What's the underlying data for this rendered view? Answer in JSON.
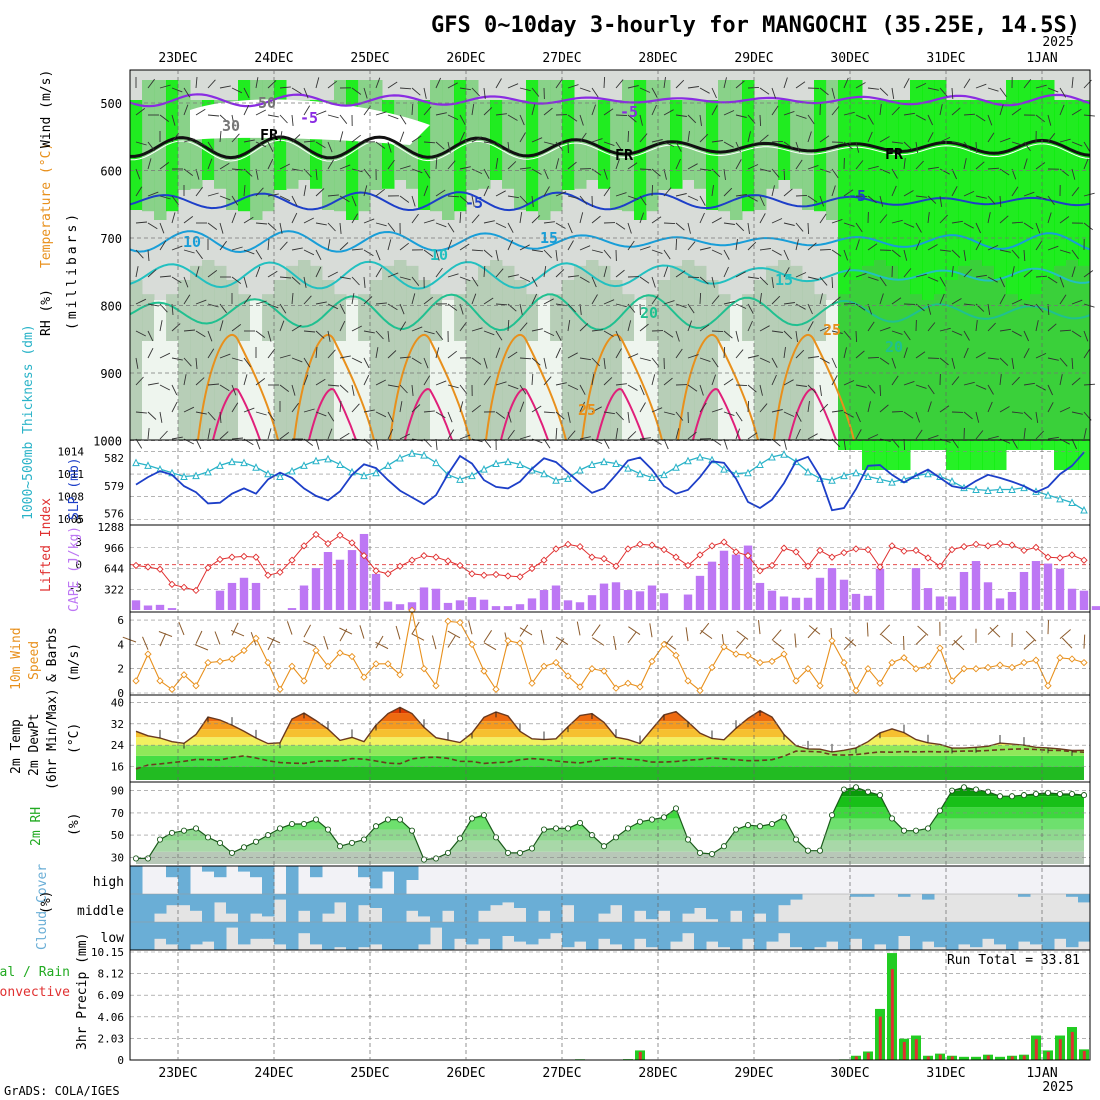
{
  "title": "GFS 0~10day 3-hourly for MANGOCHI (35.25E, 14.5S)",
  "year_top": "2025",
  "year_bottom": "2025",
  "credit": "GrADS: COLA/IGES",
  "dates": [
    "23DEC",
    "24DEC",
    "25DEC",
    "26DEC",
    "27DEC",
    "28DEC",
    "29DEC",
    "30DEC",
    "31DEC",
    "1JAN"
  ],
  "colors": {
    "rh_green": "#1fd41f",
    "rh_bright": "#00ee00",
    "purple": "#8a2be2",
    "temp_orange": "#e8901c",
    "slp_blue": "#1d3fc8",
    "thick_cyan": "#2ab3c8",
    "cape": "#bd77f4",
    "li_red": "#e03030",
    "cloud_blue": "#6aaed6",
    "precip_green": "#22cc22",
    "precip_red": "#e03030"
  },
  "panels": {
    "upper": {
      "ylabel_rh": "RH (%)",
      "ylabel_temp": "Temperature (°C)",
      "ylabel_wind": "Wind (m/s)",
      "ylabel_units": "(millibars)",
      "ticks": [
        "500",
        "600",
        "700",
        "800",
        "900",
        "1000"
      ],
      "contour_labels": [
        "-5",
        "-5",
        "FR",
        "FR",
        "FR",
        "-5",
        "-5",
        "10",
        "15",
        "10",
        "15",
        "20",
        "20",
        "25",
        "25",
        "50",
        "30"
      ]
    },
    "thickness": {
      "ylabel_left": "1000~500mb Thickness (dm)",
      "ylabel_right": "SLP (mb)",
      "left_ticks": [
        "582",
        "579",
        "576"
      ],
      "right_ticks": [
        "1014",
        "1011",
        "1008",
        "1005"
      ]
    },
    "cape": {
      "ylabel_left": "Lifted Index",
      "ylabel_right": "CAPE (J/kg)",
      "left_ticks": [
        "-3",
        "0",
        "3",
        "6"
      ],
      "right_ticks": [
        "1288",
        "966",
        "644",
        "322"
      ]
    },
    "wind10": {
      "ylabel_a": "10m Wind",
      "ylabel_b": "Speed",
      "ylabel_c": "& Barbs",
      "ylabel_units": "(m/s)",
      "ticks": [
        "6",
        "4",
        "2",
        "0"
      ]
    },
    "temp2m": {
      "ylabel_a": "2m Temp",
      "ylabel_b": "2m DewPt",
      "ylabel_c": "(6hr Min/Max)",
      "ylabel_units": "(°C)",
      "ticks": [
        "40",
        "32",
        "24",
        "16"
      ]
    },
    "rh2m": {
      "ylabel": "2m RH",
      "ylabel_units": "(%)",
      "ticks": [
        "90",
        "70",
        "50",
        "30"
      ]
    },
    "cloud": {
      "ylabel": "Cloud Cover",
      "ylabel_units": "(%)",
      "rows": [
        "high",
        "middle",
        "low"
      ]
    },
    "precip": {
      "ylabel_a": "Total / Rain",
      "ylabel_b": "Convective",
      "ylabel_c": "3hr Precip (mm)",
      "ticks": [
        "10.15",
        "8.12",
        "6.09",
        "4.06",
        "2.03",
        "0"
      ],
      "run_total": "Run Total = 33.81"
    }
  },
  "chart_data": [
    {
      "type": "line",
      "name": "1000-500mb thickness",
      "x_unit": "3-hourly steps from 22DEC12Z",
      "y_unit": "dm",
      "ylim": [
        575,
        583.5
      ],
      "values": [
        581.5,
        581.2,
        580.8,
        580.4,
        580.0,
        580.1,
        580.5,
        581.2,
        581.6,
        581.5,
        581.0,
        580.3,
        580.0,
        580.6,
        581.2,
        581.7,
        581.9,
        581.3,
        580.5,
        580.1,
        580.4,
        581.2,
        582.0,
        582.5,
        582.3,
        581.5,
        580.2,
        579.7,
        580.1,
        580.8,
        581.4,
        581.6,
        581.3,
        580.7,
        580.3,
        579.6,
        579.8,
        580.7,
        581.3,
        581.6,
        581.4,
        580.9,
        580.3,
        579.9,
        580.2,
        581.0,
        581.7,
        582.1,
        581.8,
        580.8,
        580.3,
        580.4,
        581.3,
        582.1,
        582.4,
        581.6,
        580.5,
        579.8,
        579.6,
        580.1,
        580.4,
        580.0,
        579.7,
        579.4,
        579.7,
        580.1,
        580.3,
        580.0,
        579.5,
        578.8,
        578.6,
        578.5,
        578.6,
        578.6,
        578.8,
        578.4,
        578.0,
        577.6,
        577.2,
        576.4
      ]
    },
    {
      "type": "line",
      "name": "SLP",
      "y_unit": "mb",
      "ylim": [
        1004.5,
        1015
      ],
      "values": [
        1009.6,
        1010.6,
        1011.4,
        1010.9,
        1009.4,
        1008.6,
        1007.1,
        1007.2,
        1008.4,
        1009.1,
        1008.4,
        1010.3,
        1011.2,
        1010.5,
        1009.1,
        1008.1,
        1007.5,
        1008.7,
        1010.9,
        1012.3,
        1011.8,
        1010.2,
        1008.8,
        1007.9,
        1007.0,
        1008.2,
        1011.0,
        1013.4,
        1012.4,
        1010.2,
        1009.3,
        1009.1,
        1010.0,
        1011.7,
        1013.1,
        1012.6,
        1011.2,
        1009.8,
        1008.5,
        1009.1,
        1010.9,
        1012.8,
        1013.2,
        1011.6,
        1009.4,
        1008.4,
        1008.9,
        1010.6,
        1012.7,
        1012.5,
        1010.4,
        1007.3,
        1006.5,
        1007.6,
        1009.8,
        1012.7,
        1013.3,
        1010.7,
        1006.2,
        1006.5,
        1009.0,
        1012.1,
        1012.2,
        1010.9,
        1009.9,
        1010.8,
        1011.6,
        1010.5,
        1009.4,
        1009.1,
        1010.1,
        1010.9,
        1010.5,
        1010.0,
        1009.4,
        1008.6,
        1009.3,
        1011.0,
        1012.1,
        1013.9
      ]
    },
    {
      "type": "bar",
      "name": "CAPE",
      "y_unit": "J/kg",
      "ylim": [
        0,
        1288
      ],
      "values": [
        150,
        70,
        80,
        30,
        0,
        0,
        0,
        300,
        420,
        500,
        420,
        0,
        0,
        30,
        380,
        650,
        900,
        780,
        930,
        1180,
        560,
        130,
        90,
        120,
        350,
        330,
        110,
        150,
        200,
        160,
        60,
        60,
        90,
        180,
        310,
        380,
        150,
        120,
        230,
        410,
        430,
        310,
        290,
        380,
        260,
        0,
        240,
        530,
        750,
        920,
        860,
        1000,
        420,
        300,
        210,
        190,
        190,
        500,
        650,
        470,
        250,
        220,
        640,
        0,
        0,
        650,
        340,
        210,
        210,
        590,
        760,
        430,
        180,
        280,
        590,
        760,
        720,
        640,
        330,
        300,
        60,
        160
      ]
    },
    {
      "type": "line",
      "name": "Lifted Index",
      "y_unit": "",
      "ylim": [
        -5,
        6
      ],
      "values": [
        0.1,
        0.3,
        0.6,
        2.6,
        3.0,
        3.4,
        0.4,
        -0.7,
        -1.0,
        -1.1,
        -1.0,
        1.4,
        1.0,
        -0.6,
        -2.5,
        -4.0,
        -2.8,
        -3.9,
        -2.9,
        -1.2,
        0.8,
        1.2,
        0.2,
        -0.6,
        -1.2,
        -1.0,
        -0.5,
        0.1,
        1.2,
        1.4,
        1.3,
        1.5,
        1.6,
        0.5,
        -0.6,
        -2.1,
        -2.7,
        -2.4,
        -1.0,
        -0.8,
        0.2,
        -2.1,
        -2.7,
        -2.6,
        -2.0,
        -1.0,
        0.1,
        -1.3,
        -2.5,
        -3.0,
        -1.7,
        -1.2,
        0.8,
        0.1,
        -2.2,
        -1.7,
        0.2,
        -1.9,
        -1.0,
        -1.6,
        -2.1,
        -2.0,
        0.3,
        -2.5,
        -1.8,
        -1.9,
        -0.9,
        0.2,
        -2.0,
        -2.4,
        -2.7,
        -2.5,
        -2.8,
        -2.6,
        -1.9,
        -2.3,
        -1.0,
        -0.9,
        -1.3,
        -0.6
      ]
    },
    {
      "type": "line",
      "name": "10m wind speed",
      "y_unit": "m/s",
      "ylim": [
        0,
        6.5
      ],
      "values": [
        1.0,
        3.2,
        1.0,
        0.3,
        1.5,
        0.6,
        2.5,
        2.6,
        2.8,
        3.5,
        4.5,
        2.5,
        0.3,
        2.2,
        1.0,
        3.5,
        2.2,
        3.3,
        3.0,
        1.3,
        2.4,
        2.4,
        1.5,
        6.8,
        2.0,
        0.6,
        5.9,
        5.8,
        4.0,
        1.8,
        0.3,
        4.3,
        4.1,
        0.8,
        2.2,
        2.5,
        1.4,
        0.5,
        2.0,
        1.8,
        0.4,
        0.8,
        0.5,
        2.6,
        4.0,
        3.1,
        1.0,
        0.2,
        2.1,
        3.8,
        3.2,
        3.1,
        2.5,
        2.6,
        3.2,
        1.0,
        2.0,
        0.6,
        4.3,
        2.5,
        0.2,
        2.0,
        0.8,
        2.5,
        2.9,
        2.0,
        2.2,
        3.7,
        1.0,
        2.0,
        2.0,
        2.1,
        2.3,
        2.1,
        2.5,
        2.7,
        0.6,
        2.9,
        2.8,
        2.5
      ]
    },
    {
      "type": "area",
      "name": "2m Temp",
      "y_unit": "degC",
      "ylim": [
        11,
        42
      ],
      "values": [
        29.2,
        27.5,
        26.7,
        25.3,
        24.7,
        28.0,
        34.5,
        33.4,
        31.5,
        29.2,
        26.7,
        24.6,
        24.9,
        33.8,
        36.0,
        33.2,
        30.0,
        25.8,
        26.9,
        25.3,
        31.5,
        35.8,
        38.1,
        35.8,
        30.7,
        26.8,
        25.9,
        25.0,
        28.5,
        34.4,
        36.4,
        34.9,
        29.2,
        26.4,
        26.1,
        26.4,
        30.9,
        35.1,
        35.8,
        32.5,
        27.0,
        26.1,
        24.6,
        30.0,
        35.3,
        36.5,
        32.7,
        28.5,
        26.5,
        26.0,
        30.3,
        34.0,
        36.9,
        34.5,
        28.0,
        23.8,
        22.6,
        22.5,
        21.5,
        22.1,
        23.0,
        25.3,
        28.6,
        30.1,
        28.7,
        26.1,
        24.9,
        24.3,
        22.9,
        22.9,
        23.2,
        23.6,
        24.8,
        24.4,
        24.0,
        23.2,
        23.0,
        22.6,
        22.0,
        22.1
      ]
    },
    {
      "type": "line",
      "name": "2m DewPt",
      "y_unit": "degC",
      "ylim": [
        11,
        42
      ],
      "values": [
        15.1,
        16.6,
        17.0,
        17.5,
        18.0,
        18.7,
        18.6,
        18.5,
        19.4,
        20.0,
        19.2,
        18.2,
        17.5,
        17.3,
        17.2,
        17.9,
        18.2,
        18.1,
        19.0,
        18.8,
        18.1,
        17.3,
        17.1,
        18.9,
        19.4,
        19.5,
        19.1,
        18.0,
        17.9,
        17.2,
        17.5,
        17.7,
        18.6,
        19.0,
        18.7,
        18.1,
        17.7,
        17.4,
        18.0,
        18.8,
        19.2,
        18.8,
        18.5,
        17.7,
        17.7,
        17.9,
        18.4,
        18.7,
        19.2,
        18.9,
        18.6,
        18.2,
        18.3,
        18.6,
        19.9,
        21.8,
        21.7,
        21.5,
        20.4,
        20.3,
        20.5,
        21.0,
        21.5,
        21.4,
        21.6,
        21.5,
        21.6,
        21.5,
        21.7,
        21.8,
        21.8,
        22.0,
        22.3,
        22.5,
        22.6,
        22.4,
        22.1,
        22.0,
        21.6,
        21.4
      ]
    },
    {
      "type": "area",
      "name": "2m RH",
      "y_unit": "%",
      "ylim": [
        24,
        96
      ],
      "values": [
        29,
        29,
        46,
        52,
        54,
        56,
        48,
        43,
        34,
        39,
        44,
        50,
        56,
        60,
        60,
        64,
        55,
        40,
        43,
        46,
        58,
        64,
        64,
        54,
        28,
        29,
        34,
        47,
        65,
        68,
        48,
        34,
        34,
        38,
        55,
        56,
        56,
        61,
        50,
        40,
        48,
        56,
        62,
        64,
        66,
        74,
        46,
        34,
        33,
        40,
        55,
        59,
        58,
        60,
        66,
        46,
        36,
        36,
        68,
        91,
        93,
        89,
        86,
        65,
        54,
        54,
        56,
        72,
        90,
        93,
        91,
        89,
        85,
        85,
        86,
        87,
        88,
        87,
        87,
        86
      ]
    },
    {
      "type": "bar",
      "name": "3hr total precip",
      "y_unit": "mm",
      "ylim": [
        0,
        10.15
      ],
      "values": [
        0,
        0,
        0,
        0,
        0,
        0,
        0,
        0,
        0,
        0,
        0,
        0,
        0,
        0,
        0,
        0,
        0.03,
        0,
        0,
        0,
        0,
        0,
        0,
        0,
        0,
        0,
        0,
        0,
        0,
        0,
        0,
        0,
        0,
        0,
        0,
        0,
        0,
        0.07,
        0,
        0,
        0,
        0.08,
        0.9,
        0,
        0,
        0.04,
        0,
        0,
        0.02,
        0,
        0,
        0,
        0,
        0,
        0.02,
        0,
        0,
        0,
        0,
        0.06,
        0.4,
        0.8,
        4.8,
        10.05,
        2.0,
        2.3,
        0.4,
        0.6,
        0.4,
        0.3,
        0.3,
        0.5,
        0.3,
        0.4,
        0.5,
        2.3,
        0.9,
        2.3,
        3.1,
        1.0
      ]
    },
    {
      "type": "bar",
      "name": "cloud cover",
      "series": [
        {
          "name": "high",
          "values": [
            100,
            0,
            0,
            40,
            100,
            0,
            20,
            40,
            0,
            20,
            40,
            100,
            0,
            100,
            0,
            40,
            0,
            0,
            0,
            40,
            80,
            20,
            100,
            50,
            0,
            0,
            0,
            0,
            0,
            0,
            0,
            0,
            0,
            0,
            0,
            0,
            0,
            0,
            0,
            0,
            0,
            0,
            0,
            0,
            0,
            0,
            0,
            0,
            0,
            0,
            0,
            0,
            0,
            0,
            0,
            0,
            0,
            0,
            0,
            0,
            0,
            0,
            0,
            0,
            0,
            0,
            0,
            0,
            0,
            0,
            0,
            0,
            0,
            0,
            0,
            0,
            0,
            0,
            0,
            0
          ]
        },
        {
          "name": "middle",
          "values": [
            100,
            100,
            70,
            40,
            40,
            60,
            100,
            30,
            70,
            100,
            70,
            80,
            20,
            100,
            60,
            100,
            70,
            30,
            100,
            40,
            50,
            100,
            100,
            60,
            80,
            100,
            60,
            100,
            100,
            60,
            40,
            30,
            50,
            100,
            60,
            100,
            40,
            100,
            100,
            70,
            40,
            100,
            60,
            90,
            60,
            100,
            70,
            50,
            90,
            100,
            60,
            100,
            70,
            100,
            40,
            20,
            0,
            0,
            0,
            0,
            10,
            10,
            0,
            0,
            10,
            0,
            20,
            0,
            0,
            0,
            0,
            0,
            0,
            0,
            10,
            0,
            0,
            0,
            10,
            30
          ]
        },
        {
          "name": "low",
          "values": [
            100,
            100,
            60,
            80,
            100,
            80,
            70,
            100,
            20,
            80,
            60,
            60,
            80,
            100,
            40,
            80,
            100,
            90,
            100,
            90,
            80,
            100,
            100,
            100,
            80,
            20,
            100,
            60,
            80,
            60,
            100,
            50,
            70,
            80,
            60,
            40,
            90,
            70,
            100,
            60,
            80,
            100,
            60,
            90,
            100,
            70,
            40,
            100,
            70,
            90,
            100,
            60,
            100,
            70,
            40,
            90,
            100,
            90,
            70,
            100,
            60,
            100,
            80,
            100,
            50,
            100,
            70,
            90,
            100,
            80,
            90,
            60,
            80,
            100,
            70,
            80,
            100,
            60,
            90,
            70
          ]
        }
      ]
    }
  ]
}
